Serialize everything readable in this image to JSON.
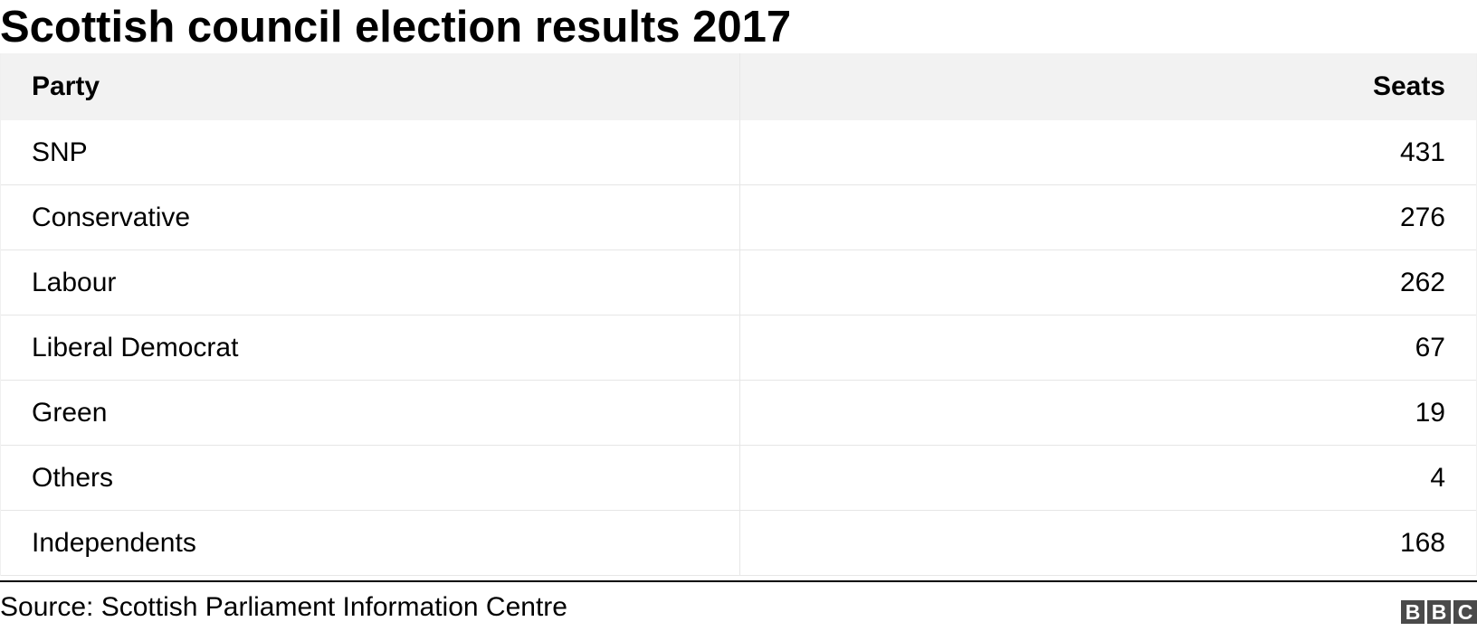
{
  "chart_data": {
    "type": "table",
    "title": "Scottish council election results 2017",
    "columns": [
      "Party",
      "Seats"
    ],
    "rows": [
      {
        "party": "SNP",
        "seats": "431"
      },
      {
        "party": "Conservative",
        "seats": "276"
      },
      {
        "party": "Labour",
        "seats": "262"
      },
      {
        "party": "Liberal Democrat",
        "seats": "67"
      },
      {
        "party": "Green",
        "seats": "19"
      },
      {
        "party": "Others",
        "seats": "4"
      },
      {
        "party": "Independents",
        "seats": "168"
      }
    ],
    "source": "Source: Scottish Parliament Information Centre"
  },
  "logo": {
    "letters": [
      "B",
      "B",
      "C"
    ],
    "color": "#4a4a4a"
  },
  "colors": {
    "header_background": "#f2f2f2",
    "row_divider": "#e6e6e6"
  }
}
